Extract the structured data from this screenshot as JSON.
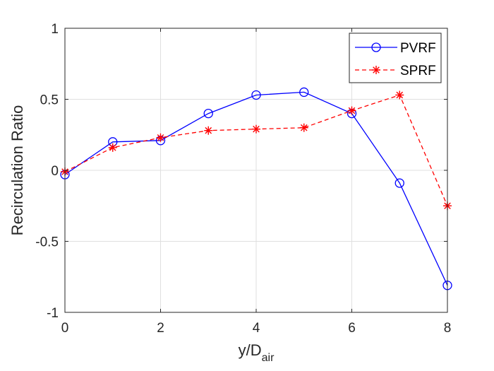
{
  "chart_data": {
    "type": "line",
    "title": "",
    "xlabel_main": "y/D",
    "xlabel_sub": "air",
    "ylabel": "Recirculation Ratio",
    "xlim": [
      0,
      8
    ],
    "ylim": [
      -1,
      1
    ],
    "xticks": [
      0,
      2,
      4,
      6,
      8
    ],
    "yticks": [
      -1,
      -0.5,
      0,
      0.5,
      1
    ],
    "xtick_labels": [
      "0",
      "2",
      "4",
      "6",
      "8"
    ],
    "ytick_labels": [
      "-1",
      "-0.5",
      "0",
      "0.5",
      "1"
    ],
    "grid": true,
    "legend_position": "top-right",
    "x": [
      0,
      1,
      2,
      3,
      4,
      5,
      6,
      7,
      8
    ],
    "series": [
      {
        "name": "PVRF",
        "color": "#0000ff",
        "line_style": "solid",
        "marker": "circle",
        "values": [
          -0.03,
          0.2,
          0.21,
          0.4,
          0.53,
          0.55,
          0.4,
          -0.09,
          -0.81
        ]
      },
      {
        "name": "SPRF",
        "color": "#ff0000",
        "line_style": "dashed",
        "marker": "asterisk",
        "values": [
          -0.01,
          0.16,
          0.23,
          0.28,
          0.29,
          0.3,
          0.42,
          0.53,
          -0.25
        ]
      }
    ]
  }
}
